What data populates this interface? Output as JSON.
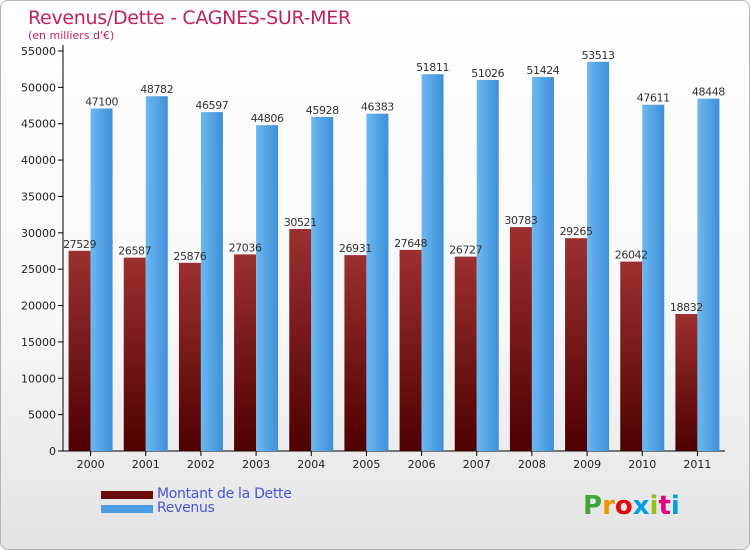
{
  "chart_data": {
    "type": "bar",
    "title": "Revenus/Dette - CAGNES-SUR-MER",
    "subtitle": "(en milliers d'€)",
    "categories": [
      "2000",
      "2001",
      "2002",
      "2003",
      "2004",
      "2005",
      "2006",
      "2007",
      "2008",
      "2009",
      "2010",
      "2011"
    ],
    "series": [
      {
        "name": "Montant de la Dette",
        "color": "#7a1414",
        "values": [
          27529,
          26587,
          25876,
          27036,
          30521,
          26931,
          27648,
          26727,
          30783,
          29265,
          26042,
          18832
        ],
        "labels": [
          "27529",
          "26587",
          "25876",
          "27036",
          "30521",
          "26931",
          "27648",
          "26727",
          "30783",
          "29265",
          "26042",
          "18832"
        ]
      },
      {
        "name": "Revenus",
        "color": "#4a9fe4",
        "values": [
          47100,
          48782,
          46597,
          44806,
          45928,
          46383,
          51811,
          51026,
          51424,
          53513,
          47611,
          48448
        ],
        "labels": [
          "47100",
          "48782",
          "46597",
          "44806",
          "45928",
          "46383",
          "51811",
          "51026",
          "51424",
          "53513",
          "47611",
          "48448"
        ]
      }
    ],
    "ylim": [
      0,
      55000
    ],
    "yticks": [
      0,
      5000,
      10000,
      15000,
      20000,
      25000,
      30000,
      35000,
      40000,
      45000,
      50000,
      55000
    ],
    "grid": false,
    "legend": "bottom-left"
  },
  "legend": {
    "debt_label": "Montant de la Dette",
    "revenue_label": "Revenus"
  },
  "logo": {
    "letters": [
      "P",
      "r",
      "o",
      "x",
      "i",
      "t",
      "i"
    ],
    "colors": [
      "#3fa535",
      "#f39200",
      "#e30613",
      "#009fe3",
      "#95c11f",
      "#e5007e",
      "#009fe3"
    ]
  }
}
